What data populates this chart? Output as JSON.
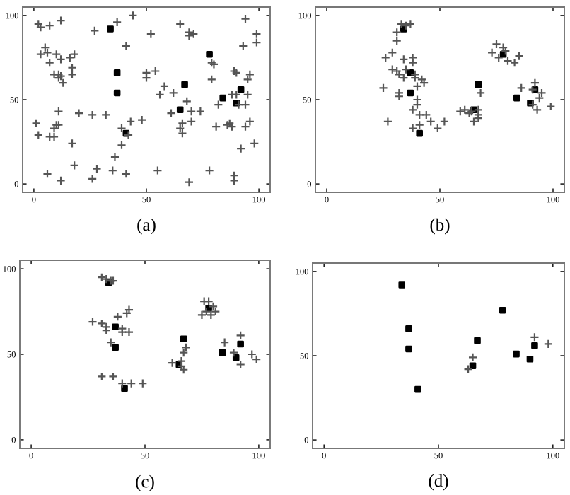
{
  "chart_data": [
    {
      "type": "scatter",
      "title": "(a)",
      "xlim": [
        -5,
        105
      ],
      "ylim": [
        -5,
        105
      ],
      "xticks": [
        0,
        50,
        100
      ],
      "yticks": [
        0,
        50,
        100
      ],
      "grid": false,
      "legend": false,
      "series": [
        {
          "color": "#555555",
          "marker": "cross",
          "x": [
            2,
            3,
            7,
            12,
            27,
            37,
            44,
            52,
            41,
            69,
            69,
            71,
            65,
            94,
            99,
            99,
            93,
            5,
            6,
            3,
            10,
            18,
            7,
            12,
            16,
            17,
            17,
            9,
            11,
            12,
            11,
            13,
            79,
            80,
            79,
            89,
            90,
            96,
            95,
            50,
            50,
            54,
            58,
            56,
            62,
            68,
            61,
            70,
            74,
            70,
            66,
            65,
            66,
            82,
            88,
            90,
            91,
            94,
            95,
            81,
            86,
            87,
            88,
            94,
            96,
            98,
            92,
            48,
            43,
            39,
            42,
            39,
            36,
            35,
            41,
            55,
            78,
            69,
            89,
            89,
            32,
            26,
            20,
            11,
            1,
            10,
            11,
            9,
            2,
            7,
            9,
            17,
            18,
            28,
            26,
            6,
            12
          ],
          "values": [
            95,
            93,
            94,
            97,
            91,
            96,
            100,
            89,
            82,
            90,
            88,
            89,
            95,
            98,
            89,
            84,
            82,
            81,
            78,
            77,
            77,
            77,
            72,
            74,
            75,
            69,
            65,
            65,
            65,
            64,
            63,
            60,
            72,
            71,
            62,
            67,
            66,
            65,
            62,
            66,
            63,
            67,
            58,
            53,
            54,
            49,
            42,
            43,
            43,
            37,
            36,
            33,
            30,
            47,
            53,
            53,
            47,
            47,
            53,
            34,
            35,
            36,
            34,
            34,
            37,
            24,
            21,
            38,
            37,
            33,
            29,
            23,
            16,
            8,
            6,
            8,
            8,
            1,
            5,
            2,
            41,
            41,
            42,
            43,
            36,
            35,
            35,
            33,
            29,
            28,
            28,
            24,
            11,
            9,
            3,
            6,
            2
          ]
        },
        {
          "color": "#000000",
          "marker": "square",
          "x": [
            34,
            37,
            37,
            41,
            65,
            67,
            78,
            84,
            90,
            92
          ],
          "values": [
            92,
            66,
            54,
            30,
            44,
            59,
            77,
            51,
            48,
            56
          ]
        }
      ]
    },
    {
      "type": "scatter",
      "title": "(b)",
      "xlim": [
        -5,
        105
      ],
      "ylim": [
        -5,
        105
      ],
      "xticks": [
        0,
        50,
        100
      ],
      "yticks": [
        0,
        50,
        100
      ],
      "grid": false,
      "legend": false,
      "series": [
        {
          "color": "#555555",
          "marker": "cross",
          "x": [
            33,
            35,
            37,
            31,
            31,
            26,
            29,
            34,
            38,
            38,
            29,
            31,
            32,
            35,
            39,
            39,
            42,
            43,
            40,
            34,
            25,
            32,
            32,
            40,
            40,
            38,
            41,
            44,
            46,
            38,
            41,
            49,
            52,
            27,
            59,
            61,
            63,
            64,
            67,
            68,
            65,
            67,
            67,
            75,
            73,
            76,
            78,
            79,
            80,
            83,
            85,
            86,
            91,
            92,
            94,
            95,
            93,
            99,
            91
          ],
          "values": [
            95,
            94,
            95,
            90,
            85,
            75,
            78,
            74,
            75,
            72,
            68,
            67,
            65,
            68,
            65,
            63,
            62,
            60,
            58,
            63,
            57,
            54,
            52,
            50,
            47,
            44,
            41,
            41,
            37,
            33,
            35,
            33,
            37,
            37,
            43,
            44,
            42,
            43,
            44,
            54,
            37,
            39,
            41,
            83,
            78,
            75,
            81,
            79,
            73,
            72,
            76,
            57,
            56,
            60,
            51,
            54,
            44,
            46,
            47
          ]
        },
        {
          "color": "#000000",
          "marker": "square",
          "x": [
            34,
            37,
            37,
            41,
            65,
            67,
            78,
            84,
            90,
            92
          ],
          "values": [
            92,
            66,
            54,
            30,
            44,
            59,
            77,
            51,
            48,
            56
          ]
        }
      ]
    },
    {
      "type": "scatter",
      "title": "(c)",
      "xlim": [
        -5,
        105
      ],
      "ylim": [
        -5,
        105
      ],
      "xticks": [
        0,
        50,
        100
      ],
      "yticks": [
        0,
        50,
        100
      ],
      "grid": false,
      "legend": false,
      "series": [
        {
          "color": "#555555",
          "marker": "cross",
          "x": [
            31,
            33,
            35,
            36,
            27,
            31,
            33,
            33,
            38,
            42,
            43,
            40,
            40,
            43,
            35,
            31,
            36,
            44,
            49,
            40,
            62,
            66,
            67,
            66,
            67,
            68,
            75,
            76,
            78,
            80,
            81,
            79,
            77,
            85,
            89,
            92,
            92,
            97,
            99
          ],
          "values": [
            95,
            94,
            93,
            93,
            69,
            68,
            66,
            64,
            72,
            74,
            76,
            65,
            63,
            63,
            57,
            37,
            37,
            33,
            33,
            33,
            45,
            43,
            41,
            46,
            51,
            54,
            73,
            81,
            81,
            78,
            75,
            73,
            75,
            57,
            51,
            61,
            44,
            50,
            47
          ]
        },
        {
          "color": "#000000",
          "marker": "square",
          "x": [
            34,
            37,
            37,
            41,
            65,
            67,
            78,
            84,
            90,
            92
          ],
          "values": [
            92,
            66,
            54,
            30,
            44,
            59,
            77,
            51,
            48,
            56
          ]
        }
      ]
    },
    {
      "type": "scatter",
      "title": "(d)",
      "xlim": [
        -5,
        105
      ],
      "ylim": [
        -5,
        105
      ],
      "xticks": [
        0,
        50,
        100
      ],
      "yticks": [
        0,
        50,
        100
      ],
      "grid": false,
      "legend": false,
      "series": [
        {
          "color": "#555555",
          "marker": "cross",
          "x": [
            65,
            63,
            92,
            98
          ],
          "values": [
            49,
            42,
            61,
            57
          ]
        },
        {
          "color": "#000000",
          "marker": "square",
          "x": [
            34,
            37,
            37,
            41,
            65,
            67,
            78,
            84,
            90,
            92
          ],
          "values": [
            92,
            66,
            54,
            30,
            44,
            59,
            77,
            51,
            48,
            56
          ]
        }
      ]
    }
  ]
}
